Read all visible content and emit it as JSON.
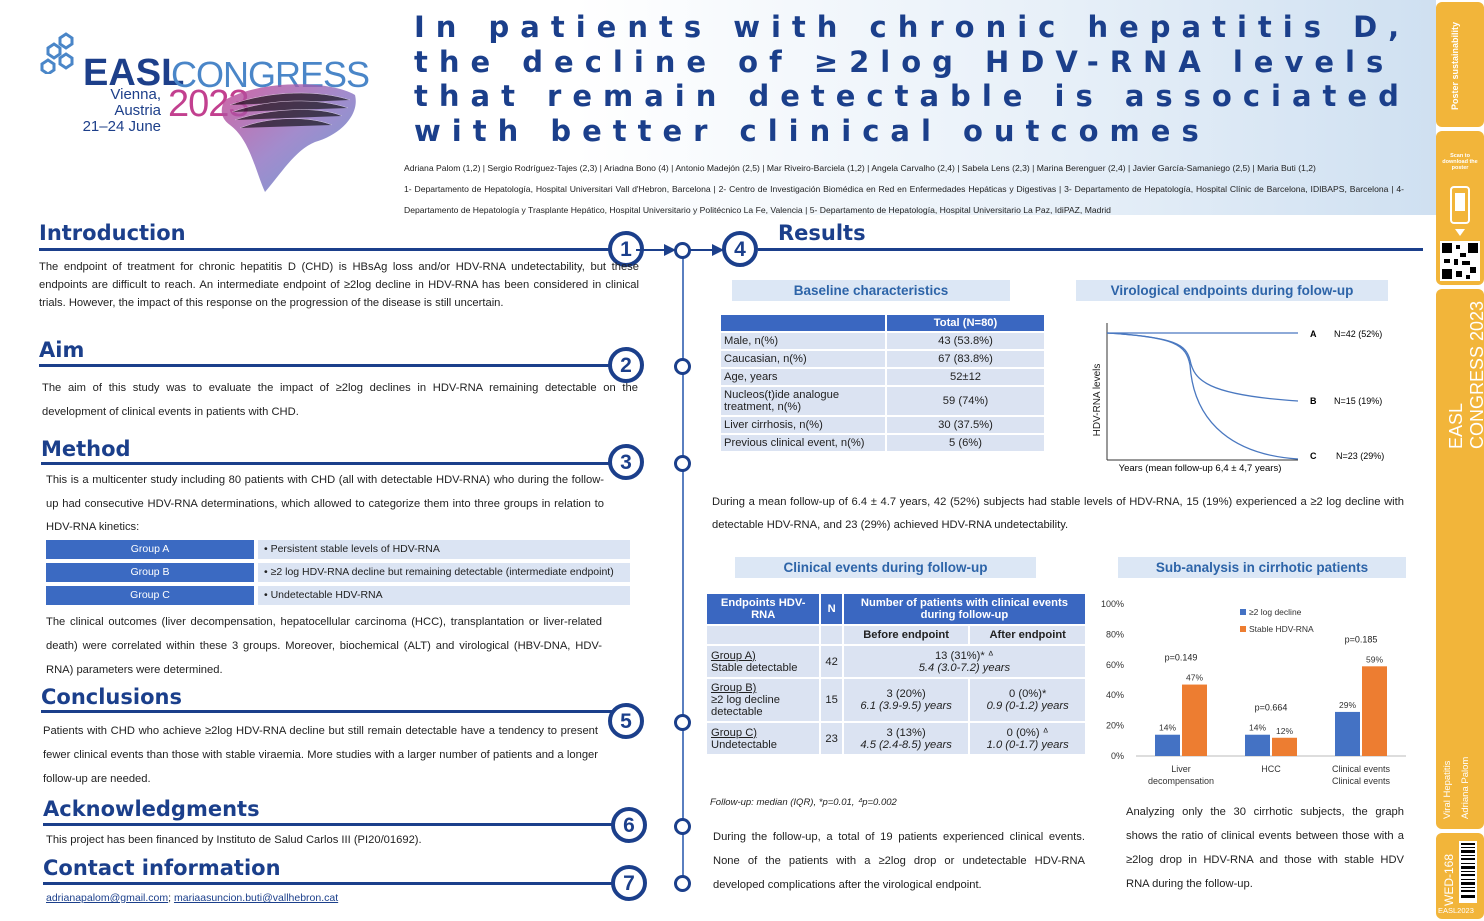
{
  "header": {
    "logo_easl": "EASL",
    "logo_congress": "CONGRESS",
    "logo_place": "Vienna, Austria",
    "logo_dates": "21–24 June",
    "logo_year": "2023",
    "title": "In patients with chronic hepatitis D, the decline of ≥2log HDV-RNA levels that remain detectable is associated with better clinical outcomes",
    "authors": "Adriana Palom (1,2) | Sergio Rodríguez-Tajes (2,3) | Ariadna Bono (4) | Antonio Madejón (2,5) | Mar Riveiro-Barciela (1,2) | Angela Carvalho (2,4) | Sabela Lens (2,3) | Marina Berenguer (2,4) | Javier García-Samaniego (2,5) | Maria Buti (1,2)",
    "affiliations": "1- Departamento de Hepatología, Hospital Universitari Vall d'Hebron, Barcelona | 2- Centro de Investigación Biomédica en Red en Enfermedades Hepáticas y Digestivas | 3- Departamento de Hepatología, Hospital Clínic de Barcelona, IDIBAPS, Barcelona | 4- Departamento de Hepatología y Trasplante Hepático, Hospital Universitario y Politécnico La Fe, Valencia | 5- Departamento de Hepatología, Hospital Universitario La Paz, IdiPAZ, Madrid"
  },
  "intro": {
    "heading": "Introduction",
    "num": "1",
    "text": "The endpoint of treatment for chronic hepatitis D (CHD) is HBsAg loss and/or HDV-RNA undetectability, but these endpoints are difficult to reach. An intermediate endpoint of ≥2log decline in HDV-RNA has been considered in clinical trials. However, the impact of this response on the progression of the disease is still uncertain."
  },
  "aim": {
    "heading": "Aim",
    "num": "2",
    "text": "The aim of this study was to evaluate the impact of ≥2log declines in HDV-RNA remaining detectable on the development of clinical events in patients with CHD."
  },
  "method": {
    "heading": "Method",
    "num": "3",
    "text1": "This is a multicenter study including 80 patients with CHD (all with detectable HDV-RNA) who during the follow-up had consecutive HDV-RNA determinations, which allowed to categorize them into three groups in relation to HDV-RNA kinetics:",
    "groups": [
      {
        "label": "Group A",
        "desc": "• Persistent stable levels of HDV-RNA"
      },
      {
        "label": "Group B",
        "desc": "• ≥2 log HDV-RNA decline but remaining detectable (intermediate endpoint)"
      },
      {
        "label": "Group C",
        "desc": "• Undetectable HDV-RNA"
      }
    ],
    "text2": "The clinical outcomes (liver decompensation, hepatocellular carcinoma (HCC), transplantation or liver-related death) were correlated within these 3 groups. Moreover, biochemical (ALT) and virological (HBV-DNA, HDV-RNA) parameters were determined."
  },
  "conclusions": {
    "heading": "Conclusions",
    "num": "5",
    "text": "Patients with CHD who achieve ≥2log HDV-RNA decline but still remain detectable have a tendency to present fewer clinical events than those with stable viraemia. More studies with a larger number of patients and a longer follow-up are needed."
  },
  "ack": {
    "heading": "Acknowledgments",
    "num": "6",
    "text": "This project has been financed by Instituto de Salud Carlos III (PI20/01692)."
  },
  "contact": {
    "heading": "Contact information",
    "num": "7",
    "email1": "adrianapalom@gmail.com",
    "sep": "; ",
    "email2": "mariaasuncion.buti@vallhebron.cat"
  },
  "results": {
    "heading": "Results",
    "num": "4",
    "baseline_title": "Baseline characteristics",
    "baseline_header": "Total (N=80)",
    "baseline_rows": [
      {
        "label": "Male, n(%)",
        "value": "43 (53.8%)"
      },
      {
        "label": "Caucasian, n(%)",
        "value": "67 (83.8%)"
      },
      {
        "label": "Age, years",
        "value": "52±12"
      },
      {
        "label": "Nucleos(t)ide analogue treatment, n(%)",
        "value": "59 (74%)"
      },
      {
        "label": "Liver cirrhosis, n(%)",
        "value": "30 (37.5%)"
      },
      {
        "label": "Previous clinical event, n(%)",
        "value": "5 (6%)"
      }
    ],
    "viro_title": "Virological endpoints during folow-up",
    "viro_ylabel": "HDV-RNA levels",
    "viro_xlabel": "Years (mean follow-up 6,4 ± 4,7 years)",
    "viro_lines": [
      {
        "letter": "A",
        "n": "N=42 (52%)"
      },
      {
        "letter": "B",
        "n": "N=15 (19%)"
      },
      {
        "letter": "C",
        "n": "N=23 (29%)"
      }
    ],
    "followup_text": "During a mean follow-up of 6.4 ± 4.7 years, 42 (52%) subjects had stable levels of HDV-RNA, 15 (19%) experienced a ≥2 log decline with detectable HDV-RNA, and 23 (29%) achieved HDV-RNA undetectability.",
    "events_title": "Clinical events during follow-up",
    "events_head": {
      "endpoints": "Endpoints HDV-RNA",
      "n": "N",
      "num": "Number of patients with clinical events during follow-up",
      "before": "Before endpoint",
      "after": "After endpoint"
    },
    "events_rows": [
      {
        "group": "Group A)",
        "desc": "Stable detectable",
        "n": "42",
        "merged": "13 (31%)* ᐞ",
        "merged_it": "5.4 (3.0-7.2) years"
      },
      {
        "group": "Group B)",
        "desc": "≥2 log decline detectable",
        "n": "15",
        "before": "3 (20%)",
        "before_it": "6.1 (3.9-9.5) years",
        "after": "0 (0%)*",
        "after_it": "0.9 (0-1.2) years"
      },
      {
        "group": "Group C)",
        "desc": "Undetectable",
        "n": "23",
        "before": "3 (13%)",
        "before_it": "4.5 (2.4-8.5) years",
        "after": "0 (0%) ᐞ",
        "after_it": "1.0 (0-1.7) years"
      }
    ],
    "events_note": "Follow-up: median (IQR), *p=0.01, ᐞp=0.002",
    "events_text": "During the follow-up, a total of 19 patients experienced clinical events. None of the patients with a ≥2log drop or undetectable HDV-RNA developed complications after the virological endpoint.",
    "sub_title": "Sub-analysis in cirrhotic patients",
    "sub_text": "Analyzing only the 30 cirrhotic subjects, the graph shows the ratio of clinical events between those with a ≥2log drop in HDV-RNA and those with stable HDV RNA during the follow-up."
  },
  "chart_data": {
    "type": "bar",
    "categories": [
      "Liver decompensation",
      "HCC",
      "Clinical events"
    ],
    "series": [
      {
        "name": "≥2 log decline",
        "values": [
          14,
          14,
          29
        ],
        "labels": [
          "14%",
          "14%",
          "29%"
        ],
        "color": "#4472c4"
      },
      {
        "name": "Stable HDV-RNA",
        "values": [
          47,
          12,
          59
        ],
        "labels": [
          "47%",
          "12%",
          "59%"
        ],
        "color": "#ed7d31"
      }
    ],
    "pvalues": [
      "p=0.149",
      "p=0.664",
      "p=0.185"
    ],
    "yticks": [
      "0%",
      "20%",
      "40%",
      "60%",
      "80%",
      "100%"
    ],
    "ylim": [
      0,
      100
    ],
    "legend": "top-right"
  },
  "sidebar": {
    "poster_label": "Poster sustainability",
    "scan_label": "Scan to download the poster",
    "congress": "EASL CONGRESS 2023",
    "topic": "Viral Hepatitis",
    "author": "Adriana Palom",
    "code": "WED-168",
    "footer": "EASL2023"
  },
  "colors": {
    "navy": "#1b3f8b",
    "accent_blue": "#3a67c1",
    "orange": "#ed7d31",
    "sidebar": "#f2b53a"
  }
}
